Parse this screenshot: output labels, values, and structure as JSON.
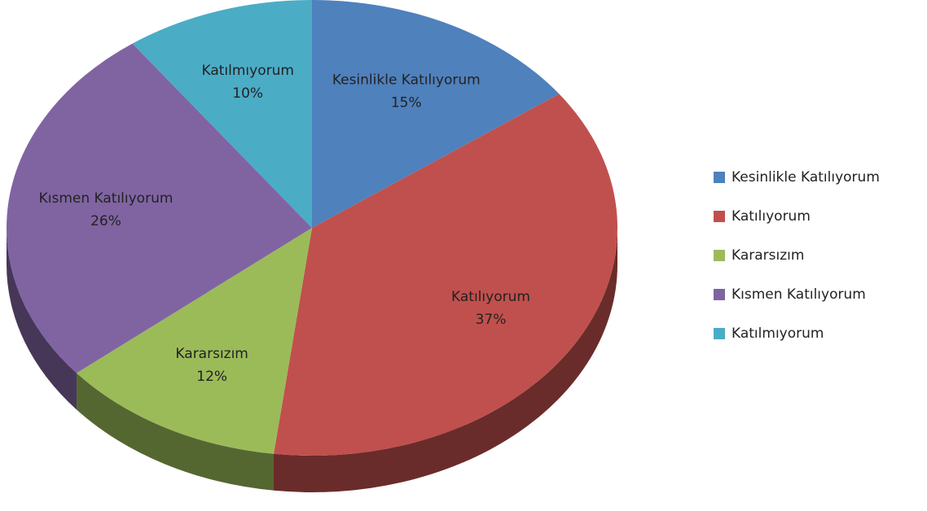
{
  "chart_data": {
    "type": "pie",
    "categories": [
      "Kesinlikle Katılıyorum",
      "Katılıyorum",
      "Kararsızım",
      "Kısmen Katılıyorum",
      "Katılmıyorum"
    ],
    "values": [
      15,
      37,
      12,
      26,
      10
    ],
    "value_labels": [
      "15%",
      "37%",
      "12%",
      "26%",
      "10%"
    ],
    "colors": [
      "#4f81bd",
      "#c0504d",
      "#9bbb59",
      "#8064a2",
      "#4bacc6"
    ],
    "legend": "right"
  }
}
